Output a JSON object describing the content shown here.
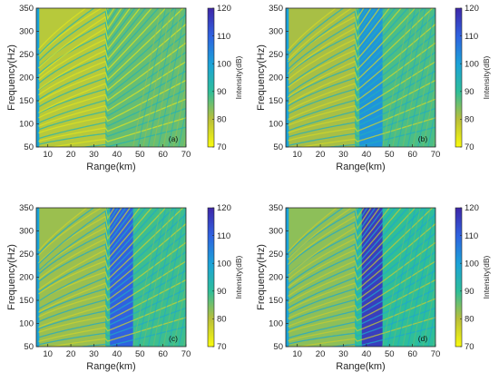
{
  "chart_data": [
    {
      "type": "heatmap",
      "panel_label": "(a)",
      "xlabel": "Range(km)",
      "ylabel": "Frequency(Hz)",
      "colorbar_label": "Intensity(dB)",
      "xlim": [
        5,
        70
      ],
      "ylim": [
        50,
        350
      ],
      "clim": [
        70,
        120
      ],
      "colormap": "parula (reversed: high = dark blue, low = yellow)",
      "x_ticks": [
        10,
        20,
        30,
        40,
        50,
        60,
        70
      ],
      "y_ticks": [
        50,
        100,
        150,
        200,
        250,
        300,
        350
      ],
      "colorbar_ticks": [
        70,
        80,
        90,
        100,
        110,
        120
      ],
      "features": {
        "shadow_zone_intensity_dB": null,
        "typical_intensity_dB": 86,
        "description_values": "mostly 80-95 dB striation pattern"
      }
    },
    {
      "type": "heatmap",
      "panel_label": "(b)",
      "xlabel": "Range(km)",
      "ylabel": "Frequency(Hz)",
      "colorbar_label": "Intensity(dB)",
      "xlim": [
        5,
        70
      ],
      "ylim": [
        50,
        350
      ],
      "clim": [
        70,
        120
      ],
      "x_ticks": [
        10,
        20,
        30,
        40,
        50,
        60,
        70
      ],
      "y_ticks": [
        50,
        100,
        150,
        200,
        250,
        300,
        350
      ],
      "colorbar_ticks": [
        70,
        80,
        90,
        100,
        110,
        120
      ],
      "features": {
        "shadow_zone_range_km": [
          37,
          47
        ],
        "shadow_zone_intensity_dB": 102,
        "typical_intensity_dB": 88
      }
    },
    {
      "type": "heatmap",
      "panel_label": "(c)",
      "xlabel": "Range(km)",
      "ylabel": "Frequency(Hz)",
      "colorbar_label": "Intensity(dB)",
      "xlim": [
        5,
        70
      ],
      "ylim": [
        50,
        350
      ],
      "clim": [
        70,
        120
      ],
      "x_ticks": [
        10,
        20,
        30,
        40,
        50,
        60,
        70
      ],
      "y_ticks": [
        50,
        100,
        150,
        200,
        250,
        300,
        350
      ],
      "colorbar_ticks": [
        70,
        80,
        90,
        100,
        110,
        120
      ],
      "features": {
        "shadow_zone_range_km": [
          37,
          47
        ],
        "shadow_zone_intensity_dB": 110,
        "typical_intensity_dB": 89
      }
    },
    {
      "type": "heatmap",
      "panel_label": "(d)",
      "xlabel": "Range(km)",
      "ylabel": "Frequency(Hz)",
      "colorbar_label": "Intensity(dB)",
      "xlim": [
        5,
        70
      ],
      "ylim": [
        50,
        350
      ],
      "clim": [
        70,
        120
      ],
      "x_ticks": [
        10,
        20,
        30,
        40,
        50,
        60,
        70
      ],
      "y_ticks": [
        50,
        100,
        150,
        200,
        250,
        300,
        350
      ],
      "colorbar_ticks": [
        70,
        80,
        90,
        100,
        110,
        120
      ],
      "features": {
        "shadow_zone_range_km": [
          38,
          47
        ],
        "shadow_zone_intensity_dB": 116,
        "typical_intensity_dB": 90
      }
    }
  ],
  "colors": {
    "c120": "#3e26a8",
    "c110": "#2f62e0",
    "c100": "#1ba2d8",
    "c90": "#2ebe9a",
    "c80": "#b9bf3a",
    "c70": "#f9fb0e"
  }
}
